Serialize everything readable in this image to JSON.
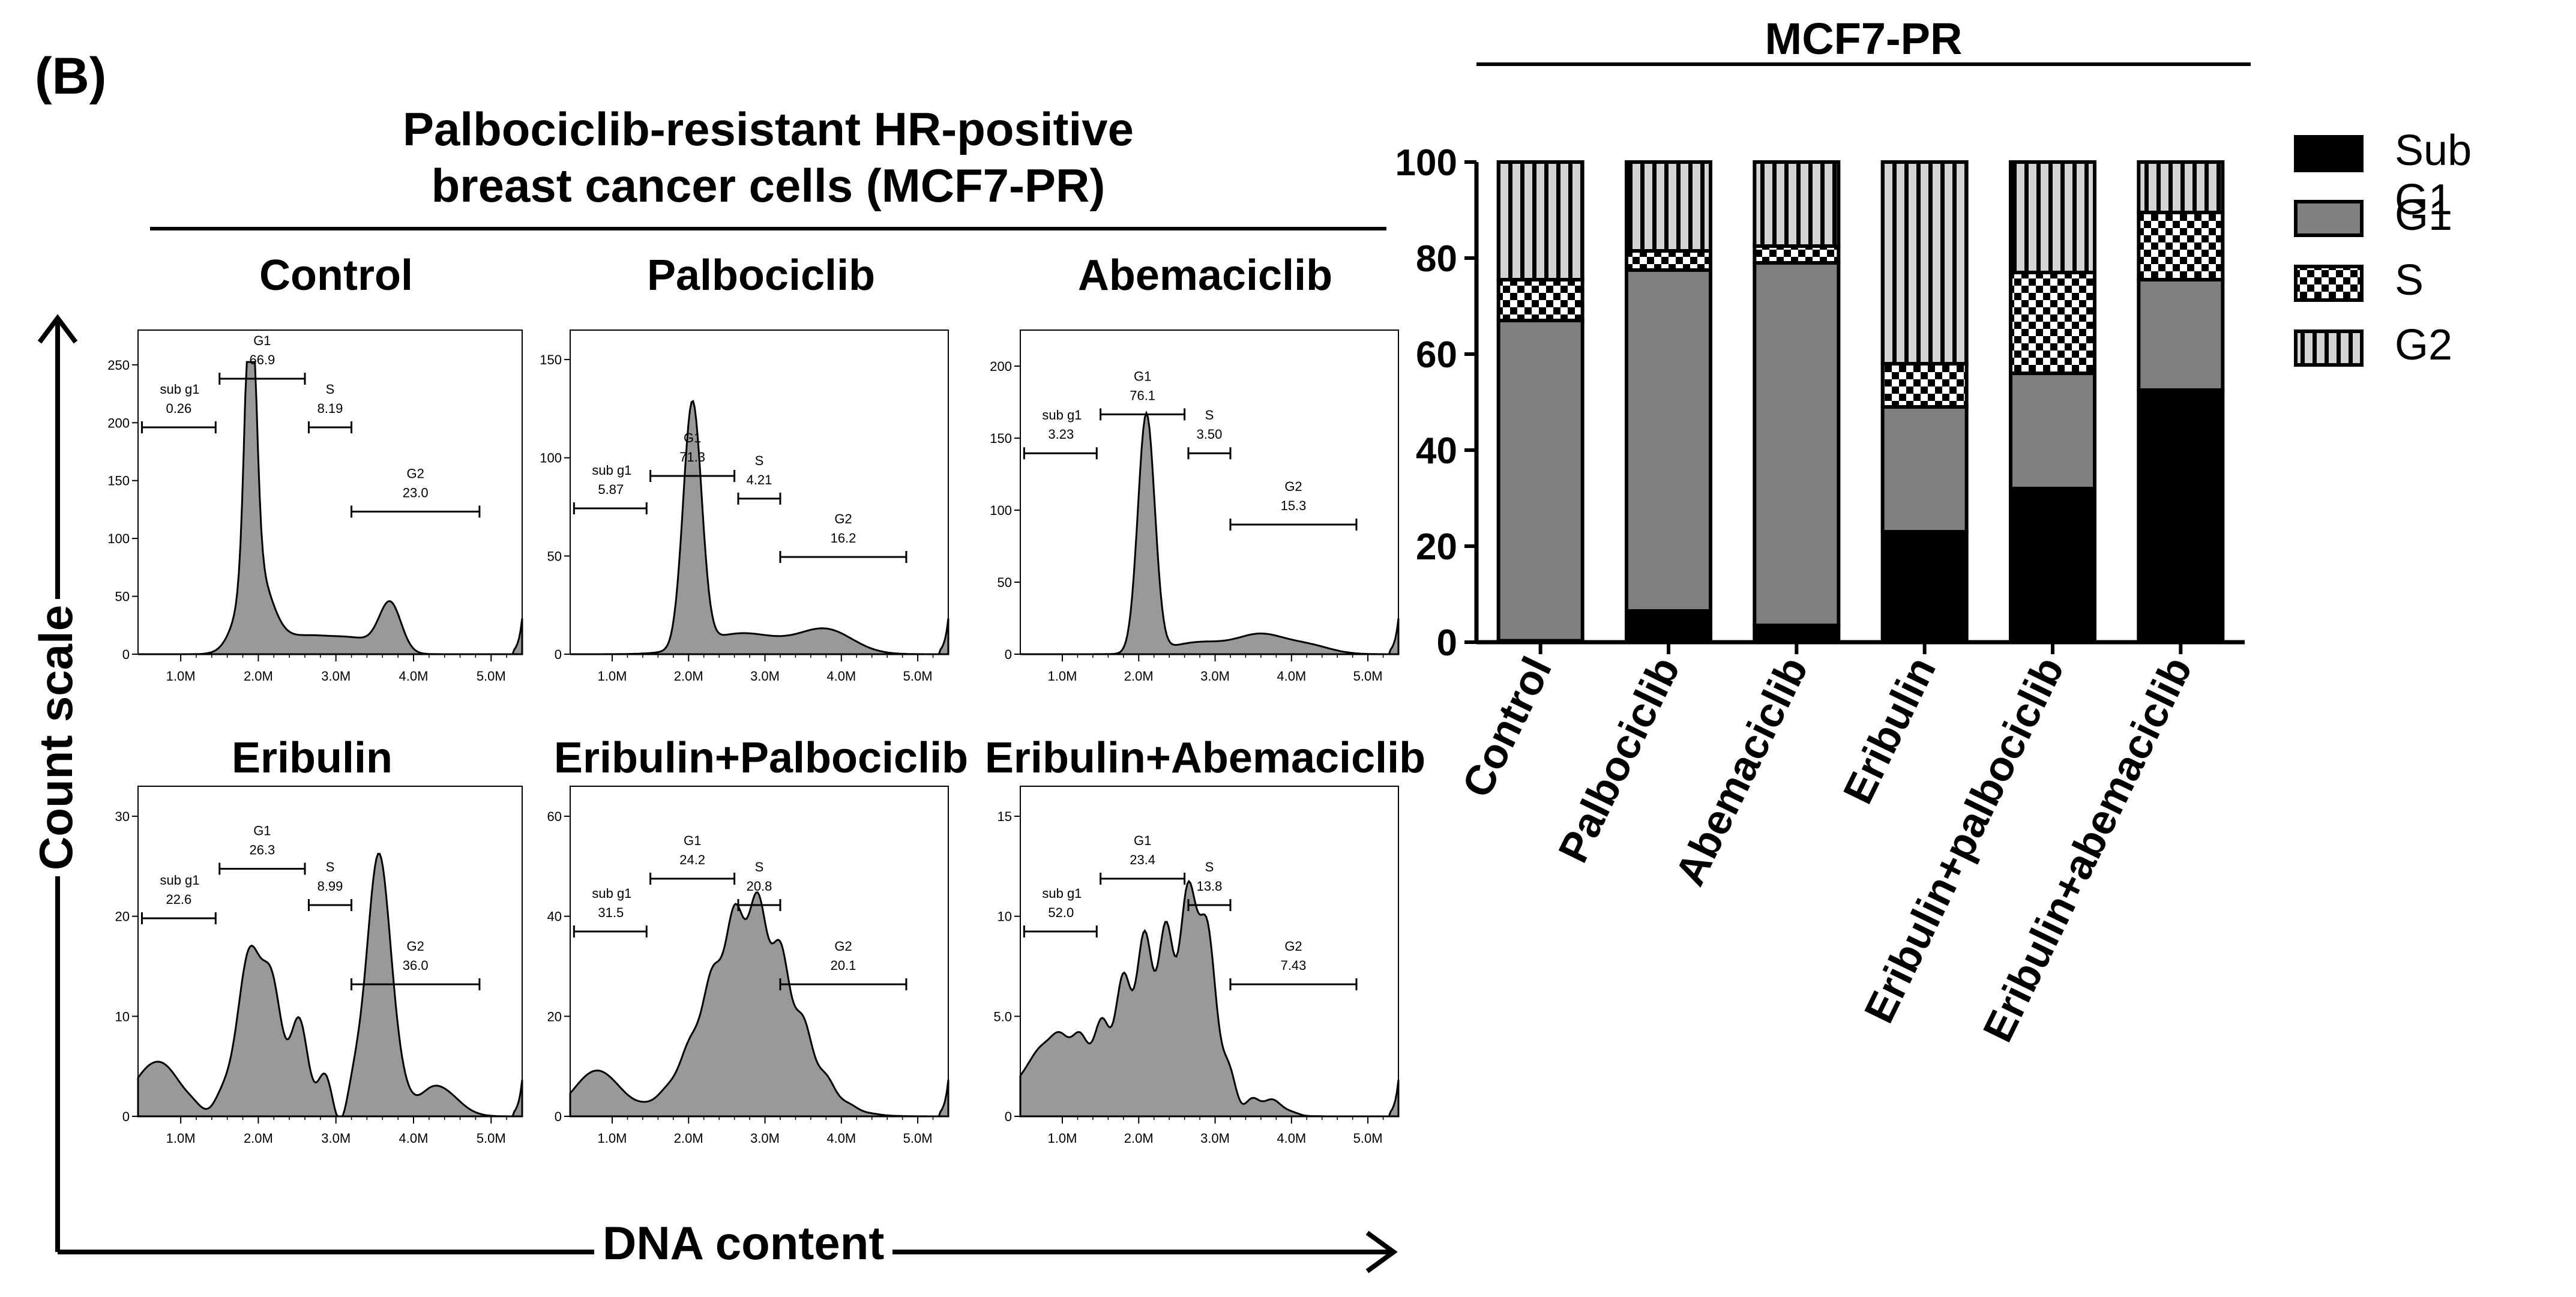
{
  "panel_label": "(B)",
  "left_title_line1": "Palbociclib-resistant HR-positive",
  "left_title_line2": "breast cancer cells (MCF7-PR)",
  "axis_y_label": "Count scale",
  "axis_x_label": "DNA content",
  "right_title": "MCF7-PR",
  "colors": {
    "subg1": "#000000",
    "g1": "#808080",
    "s_light": "#ffffff",
    "g2_stripe": "#d3d3d3",
    "hist_fill": "#999999"
  },
  "chart_data": [
    {
      "type": "area",
      "id": "control",
      "title": "Control",
      "xticks": [
        "1.0M",
        "2.0M",
        "3.0M",
        "4.0M",
        "5.0M"
      ],
      "yticks": [
        "0",
        "50",
        "100",
        "150",
        "200",
        "250"
      ],
      "ylim": [
        0,
        280
      ],
      "gates": [
        {
          "name": "sub g1",
          "value": "0.26"
        },
        {
          "name": "G1",
          "value": "66.9"
        },
        {
          "name": "S",
          "value": "8.19"
        },
        {
          "name": "G2",
          "value": "23.0"
        }
      ]
    },
    {
      "type": "area",
      "id": "palbociclib",
      "title": "Palbociclib",
      "xticks": [
        "1.0M",
        "2.0M",
        "3.0M",
        "4.0M",
        "5.0M"
      ],
      "yticks": [
        "0",
        "50",
        "100",
        "150"
      ],
      "ylim": [
        0,
        165
      ],
      "gates": [
        {
          "name": "sub g1",
          "value": "5.87"
        },
        {
          "name": "G1",
          "value": "71.3"
        },
        {
          "name": "S",
          "value": "4.21"
        },
        {
          "name": "G2",
          "value": "16.2"
        }
      ]
    },
    {
      "type": "area",
      "id": "abemaciclib",
      "title": "Abemaciclib",
      "xticks": [
        "1.0M",
        "2.0M",
        "3.0M",
        "4.0M",
        "5.0M"
      ],
      "yticks": [
        "0",
        "50",
        "100",
        "150",
        "200"
      ],
      "ylim": [
        0,
        225
      ],
      "gates": [
        {
          "name": "sub g1",
          "value": "3.23"
        },
        {
          "name": "G1",
          "value": "76.1"
        },
        {
          "name": "S",
          "value": "3.50"
        },
        {
          "name": "G2",
          "value": "15.3"
        }
      ]
    },
    {
      "type": "area",
      "id": "eribulin",
      "title": "Eribulin",
      "xticks": [
        "1.0M",
        "2.0M",
        "3.0M",
        "4.0M",
        "5.0M"
      ],
      "yticks": [
        "0",
        "10",
        "20",
        "30"
      ],
      "ylim": [
        0,
        33
      ],
      "gates": [
        {
          "name": "sub g1",
          "value": "22.6"
        },
        {
          "name": "G1",
          "value": "26.3"
        },
        {
          "name": "S",
          "value": "8.99"
        },
        {
          "name": "G2",
          "value": "36.0"
        }
      ]
    },
    {
      "type": "area",
      "id": "eribulin-palbociclib",
      "title": "Eribulin+Palbociclib",
      "xticks": [
        "1.0M",
        "2.0M",
        "3.0M",
        "4.0M",
        "5.0M"
      ],
      "yticks": [
        "0",
        "20",
        "40",
        "60"
      ],
      "ylim": [
        0,
        66
      ],
      "gates": [
        {
          "name": "sub g1",
          "value": "31.5"
        },
        {
          "name": "G1",
          "value": "24.2"
        },
        {
          "name": "S",
          "value": "20.8"
        },
        {
          "name": "G2",
          "value": "20.1"
        }
      ]
    },
    {
      "type": "area",
      "id": "eribulin-abemaciclib",
      "title": "Eribulin+Abemaciclib",
      "xticks": [
        "1.0M",
        "2.0M",
        "3.0M",
        "4.0M",
        "5.0M"
      ],
      "yticks": [
        "0",
        "5.0",
        "10",
        "15"
      ],
      "ylim": [
        0,
        16.5
      ],
      "gates": [
        {
          "name": "sub g1",
          "value": "52.0"
        },
        {
          "name": "G1",
          "value": "23.4"
        },
        {
          "name": "S",
          "value": "13.8"
        },
        {
          "name": "G2",
          "value": "7.43"
        }
      ]
    },
    {
      "type": "bar",
      "id": "stacked",
      "title": "MCF7-PR",
      "stacked": true,
      "ylim": [
        0,
        100
      ],
      "yticks": [
        "0",
        "20",
        "40",
        "60",
        "80",
        "100"
      ],
      "categories": [
        "Control",
        "Palbociclib",
        "Abemaciclib",
        "Eribulin",
        "Eribulin+palbociclib",
        "Eribulin+abemaciclib"
      ],
      "series": [
        {
          "name": "Sub G1",
          "key": "subg1",
          "values": [
            0.3,
            6.5,
            3.5,
            23,
            32,
            52.5
          ]
        },
        {
          "name": "G1",
          "key": "g1",
          "values": [
            66.7,
            71,
            75.5,
            26,
            24,
            23
          ]
        },
        {
          "name": "S",
          "key": "s",
          "values": [
            8.5,
            4,
            3.5,
            9,
            21,
            14
          ]
        },
        {
          "name": "G2",
          "key": "g2",
          "values": [
            24.5,
            18.5,
            17.5,
            42,
            23,
            10.5
          ]
        }
      ]
    }
  ]
}
